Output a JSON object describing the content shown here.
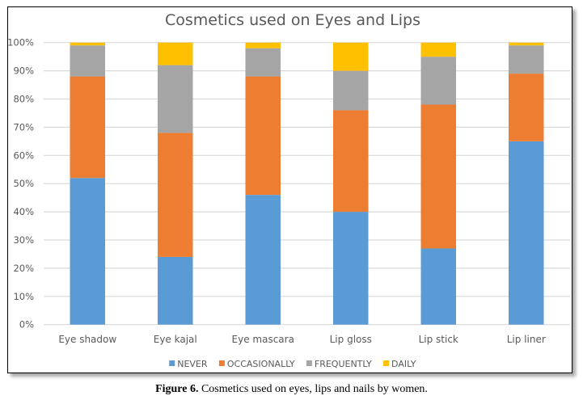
{
  "chart_data": {
    "type": "bar",
    "stacked": true,
    "percent_stacked": true,
    "title": "Cosmetics used on Eyes and Lips",
    "xlabel": "",
    "ylabel": "",
    "ylim": [
      0,
      100
    ],
    "yticks": [
      "0%",
      "10%",
      "20%",
      "30%",
      "40%",
      "50%",
      "60%",
      "70%",
      "80%",
      "90%",
      "100%"
    ],
    "grid": true,
    "legend_position": "bottom",
    "categories": [
      "Eye shadow",
      "Eye kajal",
      "Eye mascara",
      "Lip gloss",
      "Lip stick",
      "Lip liner"
    ],
    "series": [
      {
        "name": "NEVER",
        "color": "#5B9BD5",
        "values": [
          52,
          24,
          46,
          40,
          27,
          65
        ]
      },
      {
        "name": "OCCASIONALLY",
        "color": "#ED7D31",
        "values": [
          36,
          44,
          42,
          36,
          51,
          24
        ]
      },
      {
        "name": "FREQUENTLY",
        "color": "#A5A5A5",
        "values": [
          11,
          24,
          10,
          14,
          17,
          10
        ]
      },
      {
        "name": "DAILY",
        "color": "#FFC000",
        "values": [
          1,
          8,
          2,
          10,
          5,
          1
        ]
      }
    ]
  },
  "caption": {
    "label": "Figure 6.",
    "text": " Cosmetics used on eyes, lips and nails by women."
  }
}
